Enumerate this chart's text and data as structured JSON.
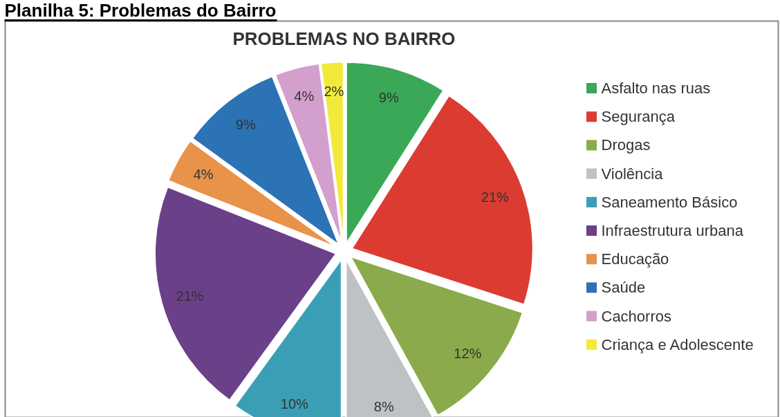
{
  "chart_data": {
    "type": "pie",
    "title": "PROBLEMAS NO BAIRRO",
    "annotations": [
      "Planilha 5: Problemas do Bairro"
    ],
    "categories": [
      "Asfalto nas ruas",
      "Segurança",
      "Drogas",
      "Violência",
      "Saneamento Básico",
      "Infraestrutura urbana",
      "Educação",
      "Saúde",
      "Cachorros",
      "Criança e Adolescente"
    ],
    "values": [
      9,
      21,
      12,
      8,
      10,
      21,
      4,
      9,
      4,
      2
    ],
    "colors": [
      "#3aa857",
      "#dc3b31",
      "#8aaa4c",
      "#bfc2c4",
      "#3a9fb5",
      "#6a4089",
      "#e8924a",
      "#2b73b4",
      "#d39fcd",
      "#f2ea3a"
    ],
    "value_labels": [
      "9%",
      "21%",
      "12%",
      "8%",
      "10%",
      "21%",
      "4%",
      "9%",
      "4%",
      "2%"
    ],
    "legend": "right"
  }
}
